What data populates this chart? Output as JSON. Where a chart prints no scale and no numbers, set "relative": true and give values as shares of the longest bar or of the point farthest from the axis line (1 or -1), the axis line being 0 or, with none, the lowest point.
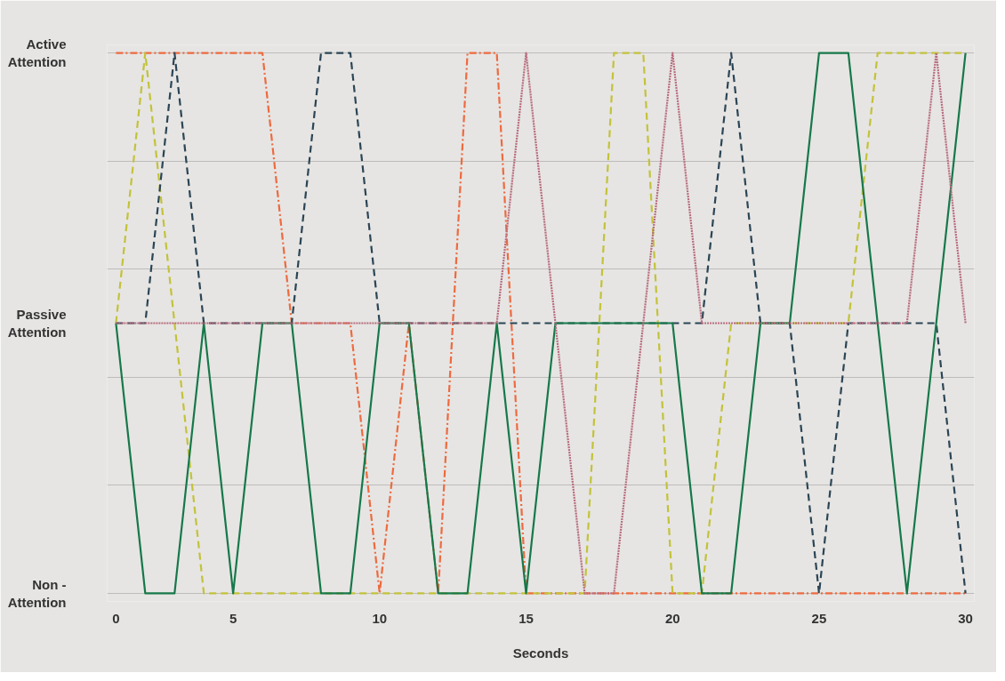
{
  "chart_data": {
    "type": "line",
    "xlabel": "Seconds",
    "relative": true,
    "categories": [
      "0",
      null,
      null,
      null,
      "5",
      null,
      null,
      null,
      null,
      "10",
      null,
      null,
      null,
      null,
      "15",
      null,
      null,
      null,
      null,
      "20",
      null,
      null,
      null,
      null,
      "25",
      null,
      null,
      null,
      null,
      "30"
    ],
    "annotations": [
      "Active Attention",
      "Passive Attention",
      "Non - Attention"
    ],
    "grid": "y",
    "series": [
      {
        "color": "#ee6a3f",
        "line_style": "dashdot",
        "values": [
          1,
          1,
          1,
          1,
          1,
          1,
          0.5,
          0.5,
          0.5,
          0,
          0.5,
          0,
          1,
          1,
          0,
          0,
          0,
          0,
          0,
          0,
          0,
          0,
          0,
          0,
          0,
          0,
          0,
          0,
          0,
          0
        ]
      },
      {
        "color": "#c3c23a",
        "line_style": "dashed",
        "values": [
          0.5,
          1,
          0.5,
          0,
          0,
          0,
          0,
          0,
          0,
          0,
          0,
          0,
          0,
          0,
          0,
          0,
          0,
          1,
          1,
          0,
          0,
          0.5,
          0.5,
          0.5,
          0.5,
          0.5,
          1,
          1,
          1,
          1
        ]
      },
      {
        "color": "#2b4555",
        "line_style": "dashed",
        "values": [
          0.5,
          0.5,
          1,
          0.5,
          0.5,
          0.5,
          0.5,
          1,
          1,
          0.5,
          0.5,
          0.5,
          0.5,
          0.5,
          0.5,
          0.5,
          0.5,
          0.5,
          0.5,
          0.5,
          0.5,
          1,
          0.5,
          0.5,
          0,
          0.5,
          0.5,
          0.5,
          0.5,
          0
        ]
      },
      {
        "color": "#17784a",
        "line_style": "solid",
        "values": [
          0.5,
          0,
          0,
          0.5,
          0,
          0.5,
          0.5,
          0,
          0,
          0.5,
          0.5,
          0,
          0,
          0.5,
          0,
          0.5,
          0.5,
          0.5,
          0.5,
          0.5,
          0,
          0,
          0.5,
          0.5,
          1,
          1,
          0.5,
          0,
          0.5,
          1
        ]
      },
      {
        "color": "#b86b7e",
        "line_style": "dotted",
        "values": [
          0.5,
          0.5,
          0.5,
          0.5,
          0.5,
          0.5,
          0.5,
          0.5,
          0.5,
          0.5,
          0.5,
          0.5,
          0.5,
          0.5,
          1,
          0.5,
          0,
          0,
          0.5,
          1,
          0.5,
          0.5,
          0.5,
          0.5,
          0.5,
          0.5,
          0.5,
          0.5,
          1,
          0.5
        ]
      }
    ]
  }
}
